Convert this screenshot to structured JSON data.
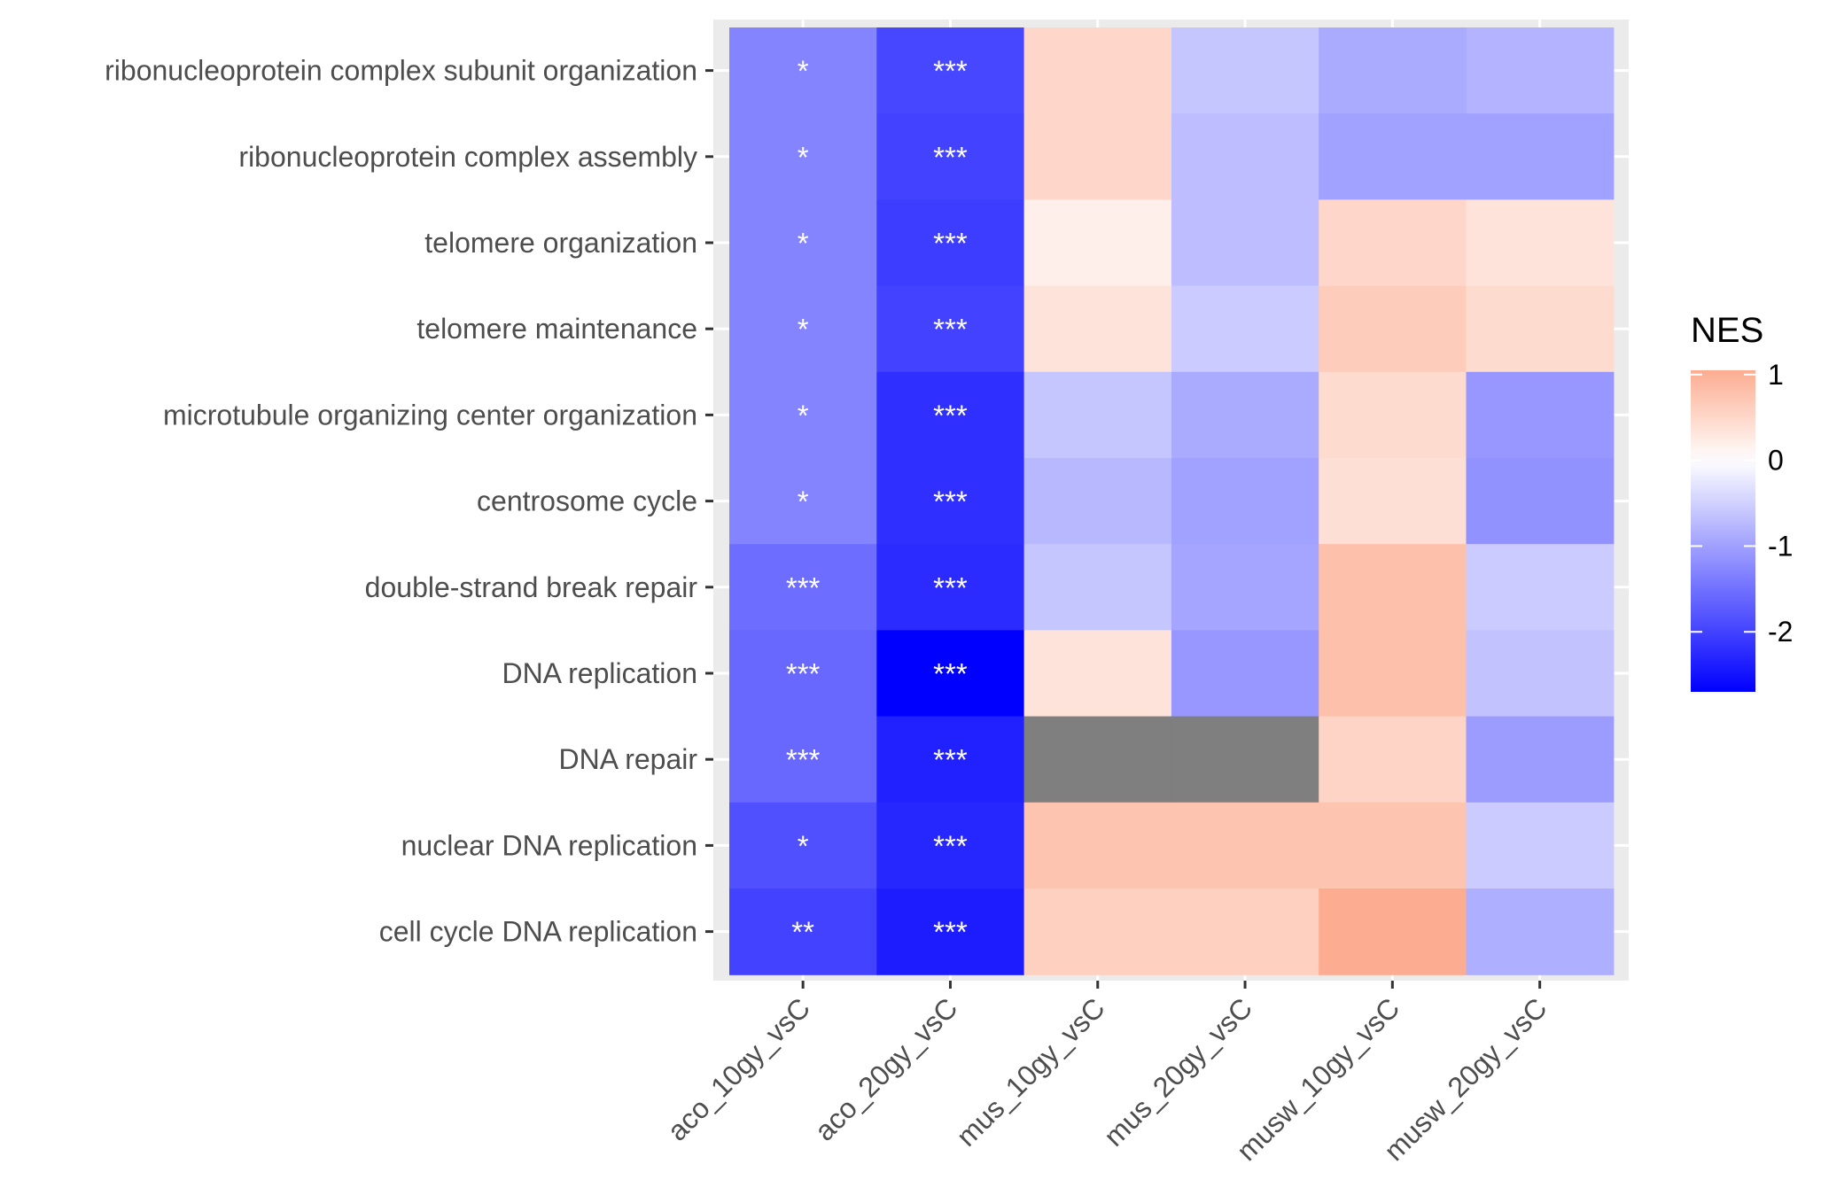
{
  "chart_data": {
    "type": "heatmap",
    "columns": [
      "aco_10gy_vsC",
      "aco_20gy_vsC",
      "mus_10gy_vsC",
      "mus_20gy_vsC",
      "musw_10gy_vsC",
      "musw_20gy_vsC"
    ],
    "rows": [
      "ribonucleoprotein complex subunit organization",
      "ribonucleoprotein complex assembly",
      "telomere organization",
      "telomere maintenance",
      "microtubule organizing center organization",
      "centrosome cycle",
      "double-strand break repair",
      "DNA replication",
      "DNA repair",
      "nuclear DNA replication",
      "cell cycle DNA replication"
    ],
    "values": [
      [
        -1.3,
        -1.95,
        0.5,
        -0.6,
        -0.9,
        -0.8
      ],
      [
        -1.3,
        -2.0,
        0.5,
        -0.7,
        -1.0,
        -1.0
      ],
      [
        -1.3,
        -2.05,
        0.2,
        -0.7,
        0.5,
        0.35
      ],
      [
        -1.3,
        -2.0,
        0.35,
        -0.55,
        0.65,
        0.45
      ],
      [
        -1.3,
        -2.2,
        -0.6,
        -0.9,
        0.45,
        -1.1
      ],
      [
        -1.3,
        -2.2,
        -0.75,
        -1.0,
        0.4,
        -1.15
      ],
      [
        -1.55,
        -2.25,
        -0.6,
        -0.95,
        0.8,
        -0.55
      ],
      [
        -1.6,
        -2.7,
        0.35,
        -1.1,
        0.8,
        -0.65
      ],
      [
        -1.6,
        -2.35,
        null,
        null,
        0.55,
        -1.05
      ],
      [
        -1.85,
        -2.3,
        0.75,
        0.75,
        0.75,
        -0.55
      ],
      [
        -2.0,
        -2.4,
        0.6,
        0.6,
        1.05,
        -0.85
      ]
    ],
    "significance": [
      [
        "*",
        "***",
        "",
        "",
        "",
        ""
      ],
      [
        "*",
        "***",
        "",
        "",
        "",
        ""
      ],
      [
        "*",
        "***",
        "",
        "",
        "",
        ""
      ],
      [
        "*",
        "***",
        "",
        "",
        "",
        ""
      ],
      [
        "*",
        "***",
        "",
        "",
        "",
        ""
      ],
      [
        "*",
        "***",
        "",
        "",
        "",
        ""
      ],
      [
        "***",
        "***",
        "",
        "",
        "",
        ""
      ],
      [
        "***",
        "***",
        "",
        "",
        "",
        ""
      ],
      [
        "***",
        "***",
        "",
        "",
        "",
        ""
      ],
      [
        "*",
        "***",
        "",
        "",
        "",
        ""
      ],
      [
        "**",
        "***",
        "",
        "",
        "",
        ""
      ]
    ],
    "na_color": "#7f7f7f",
    "color_scale": {
      "low": "#0000ff",
      "mid": "#ffffff",
      "high": "#fcac90",
      "midpoint": 0,
      "limits": [
        -2.7,
        1.05
      ]
    },
    "legend": {
      "title": "NES",
      "ticks": [
        1,
        0,
        -1,
        -2
      ],
      "tick_labels": [
        "1",
        "0",
        "-1",
        "-2"
      ],
      "position": "right"
    },
    "panel_background": "#ebebeb",
    "grid": true
  }
}
